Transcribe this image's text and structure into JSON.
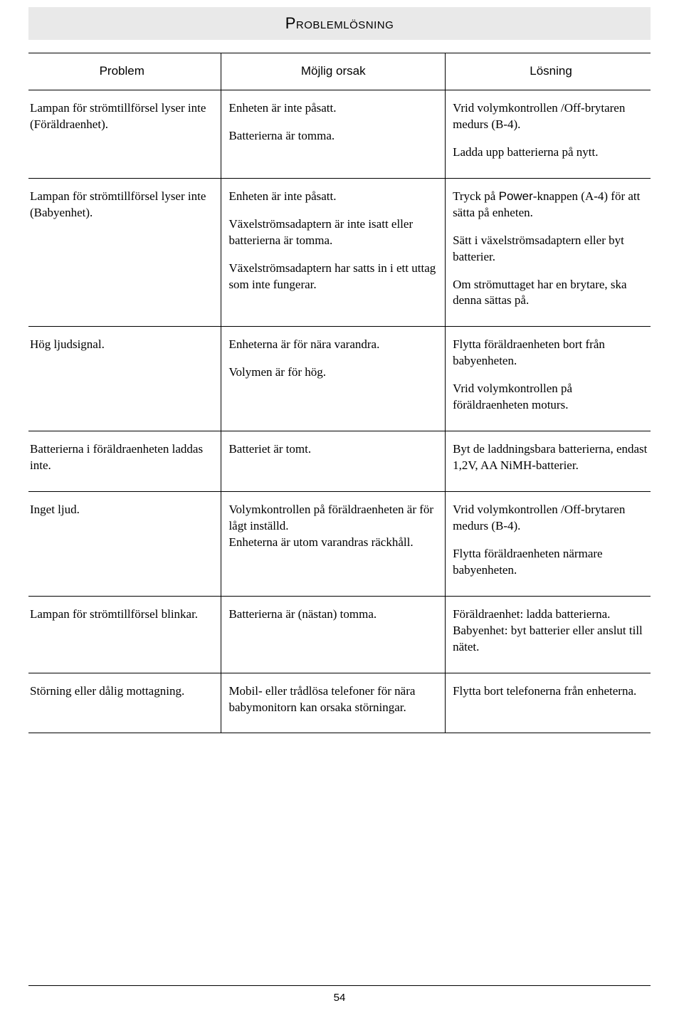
{
  "title": "Problemlösning",
  "headers": {
    "col1": "Problem",
    "col2": "Möjlig orsak",
    "col3": "Lösning"
  },
  "rows": [
    {
      "problem": [
        "Lampan för strömtillförsel lyser inte (Föräldraenhet)."
      ],
      "cause": [
        "Enheten är inte påsatt.",
        "Batterierna är tomma."
      ],
      "solution": [
        "Vrid volymkontrollen /Off-brytaren medurs (B-4).",
        "Ladda upp batterierna på nytt."
      ]
    },
    {
      "problem": [
        "Lampan för strömtillförsel lyser inte (Babyenhet)."
      ],
      "cause": [
        "Enheten är inte påsatt.",
        "Växelströmsadaptern är inte isatt eller batterierna är tomma.",
        "Växelströmsadaptern har satts in i ett uttag som inte fungerar."
      ],
      "solution": [
        "Tryck på <span class=\"sans\">Power</span>-knappen (A-4) för att sätta på enheten.",
        "Sätt i växelströmsadaptern eller byt batterier.",
        "Om strömuttaget har en brytare, ska denna sättas på."
      ]
    },
    {
      "problem": [
        "Hög ljudsignal."
      ],
      "cause": [
        "Enheterna är för nära varandra.",
        "Volymen är för hög."
      ],
      "solution": [
        "Flytta föräldraenheten bort från babyenheten.",
        "Vrid volymkontrollen på föräldraenheten moturs."
      ]
    },
    {
      "problem": [
        "Batterierna i föräldraenheten laddas inte."
      ],
      "cause": [
        "Batteriet är tomt."
      ],
      "solution": [
        "Byt de laddningsbara batterierna, endast 1,2V, AA NiMH-batterier."
      ]
    },
    {
      "problem": [
        "Inget ljud."
      ],
      "cause": [
        "Volymkontrollen på föräldraenheten är för lågt inställd.<br>Enheterna är utom varandras räckhåll."
      ],
      "solution": [
        "Vrid volymkontrollen /Off-brytaren medurs (B-4).",
        "Flytta föräldraenheten närmare babyenheten."
      ]
    },
    {
      "problem": [
        "Lampan för strömtillförsel blinkar."
      ],
      "cause": [
        "Batterierna är (nästan) tomma."
      ],
      "solution": [
        "Föräldraenhet: ladda batterierna. Babyenhet: byt batterier eller anslut till nätet."
      ]
    },
    {
      "problem": [
        "Störning eller dålig mottagning."
      ],
      "cause": [
        "Mobil- eller trådlösa telefoner för nära babymonitorn kan orsaka störningar."
      ],
      "solution": [
        "Flytta bort telefonerna från enheterna."
      ]
    }
  ],
  "pageNumber": "54"
}
